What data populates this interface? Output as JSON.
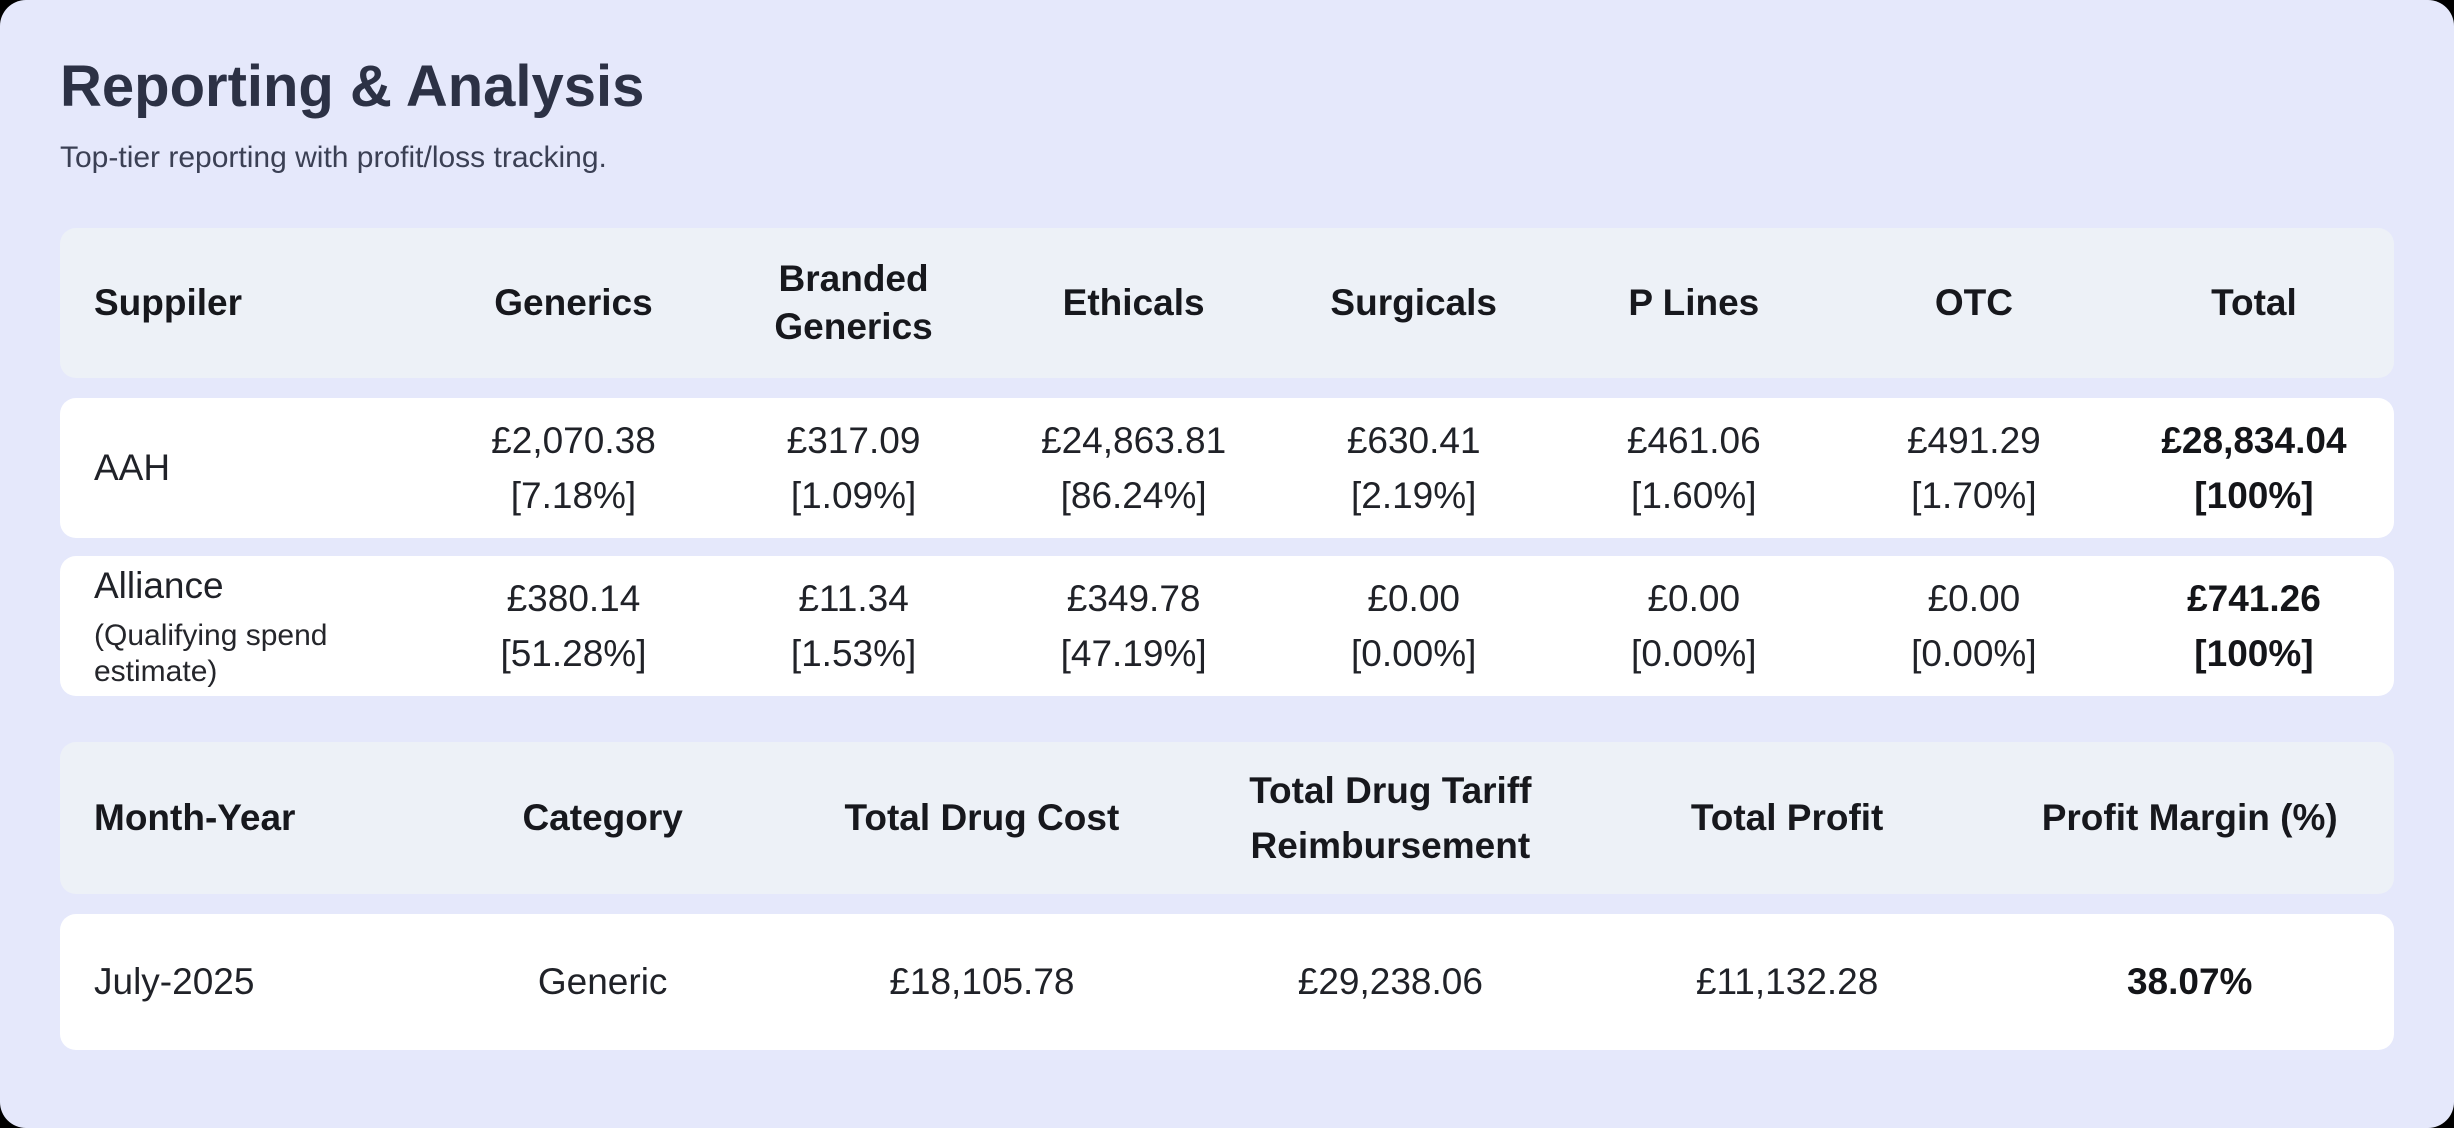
{
  "page": {
    "title": "Reporting & Analysis",
    "subtitle": "Top-tier reporting with profit/loss tracking."
  },
  "colors": {
    "canvas": "#000000",
    "page_background": "#e5e8fb",
    "table_header_background": "#edf1f7",
    "row_background": "#ffffff",
    "title_text": "#2c3145",
    "body_text": "#202228"
  },
  "supplier_table": {
    "columns": [
      "Suppiler",
      "Generics",
      "Branded Generics",
      "Ethicals",
      "Surgicals",
      "P Lines",
      "OTC",
      "Total"
    ],
    "rows": [
      {
        "supplier": "AAH",
        "note": "",
        "cells": [
          {
            "amount": "£2,070.38",
            "pct": "[7.18%]"
          },
          {
            "amount": "£317.09",
            "pct": "[1.09%]"
          },
          {
            "amount": "£24,863.81",
            "pct": "[86.24%]"
          },
          {
            "amount": "£630.41",
            "pct": "[2.19%]"
          },
          {
            "amount": "£461.06",
            "pct": "[1.60%]"
          },
          {
            "amount": "£491.29",
            "pct": "[1.70%]"
          }
        ],
        "total": {
          "amount": "£28,834.04",
          "pct": "[100%]"
        }
      },
      {
        "supplier": "Alliance",
        "note": "(Qualifying spend estimate)",
        "cells": [
          {
            "amount": "£380.14",
            "pct": "[51.28%]"
          },
          {
            "amount": "£11.34",
            "pct": "[1.53%]"
          },
          {
            "amount": "£349.78",
            "pct": "[47.19%]"
          },
          {
            "amount": "£0.00",
            "pct": "[0.00%]"
          },
          {
            "amount": "£0.00",
            "pct": "[0.00%]"
          },
          {
            "amount": "£0.00",
            "pct": "[0.00%]"
          }
        ],
        "total": {
          "amount": "£741.26",
          "pct": "[100%]"
        }
      }
    ]
  },
  "profit_table": {
    "columns": [
      "Month-Year",
      "Category",
      "Total Drug Cost",
      "Total Drug Tariff Reimbursement",
      "Total Profit",
      "Profit Margin (%)"
    ],
    "rows": [
      {
        "month": "July-2025",
        "category": "Generic",
        "drug_cost": "£18,105.78",
        "reimbursement": "£29,238.06",
        "profit": "£11,132.28",
        "margin": "38.07%"
      }
    ]
  }
}
